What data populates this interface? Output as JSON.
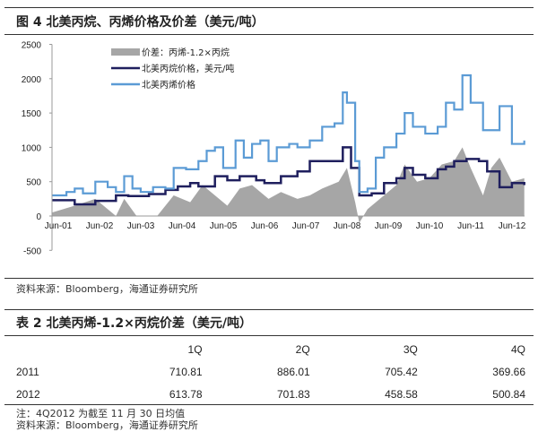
{
  "figure": {
    "title": "图 4   北美丙烷、丙烯价格及价差（美元/吨）",
    "source": "资料来源：Bloomberg，海通证券研究所"
  },
  "chart_data": {
    "type": "line",
    "title": "",
    "ylim": [
      -500,
      2500
    ],
    "yticks": [
      "2500",
      "2000",
      "1500",
      "1000",
      "500",
      "0",
      "-500"
    ],
    "ytick_values": [
      2500,
      2000,
      1500,
      1000,
      500,
      0,
      -500
    ],
    "xticks": [
      "Jun-01",
      "Jun-02",
      "Jun-03",
      "Jun-04",
      "Jun-05",
      "Jun-06",
      "Jun-07",
      "Jun-08",
      "Jun-09",
      "Jun-10",
      "Jun-11",
      "Jun-12"
    ],
    "legend_placement": "top-left",
    "series": [
      {
        "name": "价差：丙烯-1.2×丙烷",
        "kind": "area",
        "color": "#a6a6a6",
        "x": [
          2001.45,
          2002.0,
          2002.5,
          2002.8,
          2003.0,
          2003.2,
          2003.5,
          2004.0,
          2004.4,
          2004.8,
          2005.1,
          2005.4,
          2005.7,
          2006.0,
          2006.3,
          2006.7,
          2007.0,
          2007.4,
          2007.7,
          2008.0,
          2008.4,
          2008.6,
          2008.8,
          2008.9,
          2009.1,
          2009.5,
          2009.8,
          2010.0,
          2010.3,
          2010.6,
          2010.9,
          2011.2,
          2011.4,
          2011.6,
          2011.9,
          2012.1,
          2012.3,
          2012.6,
          2012.9
        ],
        "values": [
          50,
          150,
          250,
          100,
          0,
          250,
          0,
          0,
          300,
          200,
          450,
          300,
          150,
          400,
          450,
          250,
          350,
          250,
          300,
          400,
          500,
          700,
          200,
          -100,
          100,
          300,
          450,
          750,
          500,
          550,
          750,
          800,
          1000,
          700,
          300,
          700,
          850,
          500,
          550
        ]
      },
      {
        "name": "北美丙烷价格，美元/吨",
        "kind": "line",
        "color": "#1f1f5e",
        "x": [
          2001.45,
          2002.0,
          2002.5,
          2003.0,
          2003.3,
          2003.8,
          2004.2,
          2004.5,
          2004.8,
          2005.0,
          2005.4,
          2005.7,
          2006.0,
          2006.4,
          2006.6,
          2007.0,
          2007.4,
          2007.7,
          2008.0,
          2008.5,
          2008.7,
          2008.9,
          2009.2,
          2009.5,
          2009.8,
          2010.0,
          2010.2,
          2010.5,
          2010.8,
          2011.0,
          2011.2,
          2011.5,
          2011.8,
          2012.0,
          2012.3,
          2012.6,
          2012.9
        ],
        "values": [
          230,
          170,
          220,
          300,
          290,
          320,
          380,
          430,
          480,
          430,
          580,
          520,
          580,
          520,
          480,
          580,
          650,
          800,
          800,
          1000,
          700,
          300,
          330,
          480,
          550,
          700,
          600,
          550,
          680,
          720,
          800,
          830,
          800,
          650,
          420,
          480,
          450
        ]
      },
      {
        "name": "北美丙烯价格",
        "kind": "line",
        "color": "#5b9bd5",
        "x": [
          2001.45,
          2001.8,
          2002.0,
          2002.2,
          2002.5,
          2002.8,
          2003.0,
          2003.2,
          2003.4,
          2003.6,
          2003.9,
          2004.2,
          2004.4,
          2004.7,
          2005.0,
          2005.2,
          2005.4,
          2005.6,
          2005.9,
          2006.1,
          2006.3,
          2006.5,
          2006.7,
          2006.9,
          2007.2,
          2007.4,
          2007.7,
          2008.0,
          2008.3,
          2008.5,
          2008.6,
          2008.8,
          2008.9,
          2009.1,
          2009.3,
          2009.5,
          2009.8,
          2010.0,
          2010.2,
          2010.5,
          2010.8,
          2011.0,
          2011.2,
          2011.4,
          2011.6,
          2011.9,
          2012.1,
          2012.3,
          2012.6,
          2012.9
        ],
        "values": [
          300,
          350,
          400,
          330,
          500,
          420,
          350,
          580,
          400,
          350,
          420,
          400,
          700,
          680,
          800,
          950,
          1000,
          700,
          1100,
          850,
          1050,
          1100,
          800,
          1000,
          1050,
          1000,
          1100,
          1300,
          1350,
          1800,
          1650,
          800,
          350,
          400,
          850,
          1000,
          1200,
          1500,
          1300,
          1200,
          1300,
          1650,
          1550,
          2050,
          1650,
          1250,
          1250,
          1600,
          1050,
          1100
        ]
      }
    ]
  },
  "table": {
    "title": "表 2   北美丙烯-1.2×丙烷价差（美元/吨）",
    "headers": [
      "",
      "1Q",
      "2Q",
      "3Q",
      "4Q"
    ],
    "rows": [
      [
        "2011",
        "710.81",
        "886.01",
        "705.42",
        "369.66"
      ],
      [
        "2012",
        "613.78",
        "701.83",
        "458.58",
        "500.84"
      ]
    ],
    "note": "注：4Q2012 为截至 11 月 30 日均值",
    "source": "资料来源：Bloomberg，海通证券研究所"
  }
}
